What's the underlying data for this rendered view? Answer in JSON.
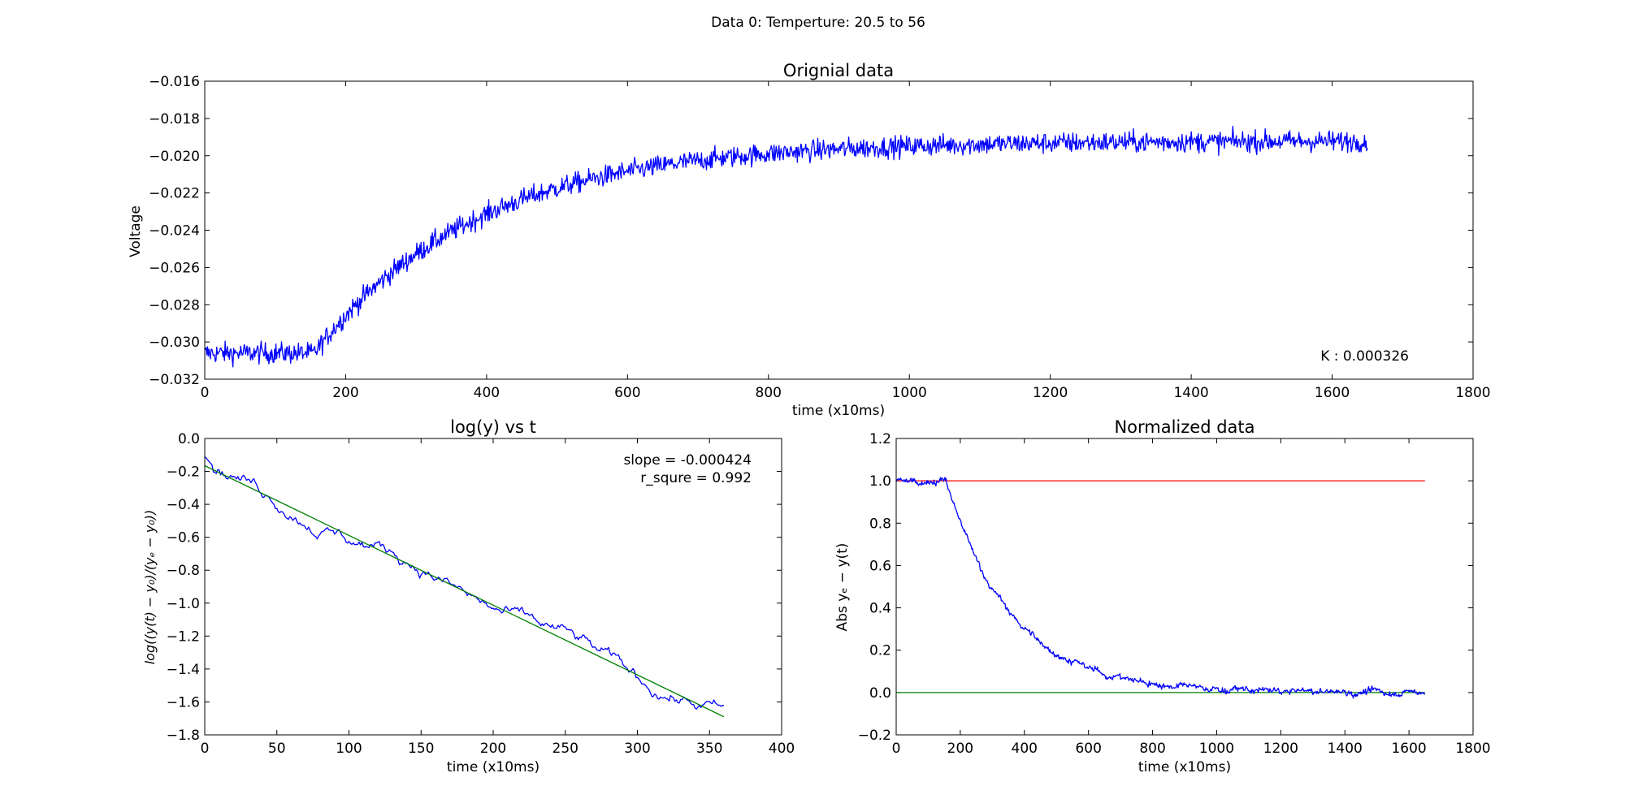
{
  "suptitle": "Data 0: Temperture: 20.5 to 56",
  "chart_data": [
    {
      "type": "line",
      "title": "Orignial data",
      "xlabel": "time (x10ms)",
      "ylabel": "Voltage",
      "xlim": [
        0,
        1800
      ],
      "ylim": [
        -0.032,
        -0.016
      ],
      "xticks": [
        "0",
        "200",
        "400",
        "600",
        "800",
        "1000",
        "1200",
        "1400",
        "1600",
        "1800"
      ],
      "yticks": [
        "−0.032",
        "−0.030",
        "−0.028",
        "−0.026",
        "−0.024",
        "−0.022",
        "−0.020",
        "−0.018",
        "−0.016"
      ],
      "annotation": "K : 0.000326",
      "grid": false,
      "series": [
        {
          "color": "#0000ff",
          "x_range": [
            0,
            1650
          ],
          "baseline": -0.0306,
          "plateau": -0.0192,
          "onset": 155,
          "k": 0.000326,
          "noise": 0.00028,
          "points": 1651
        }
      ]
    },
    {
      "type": "line",
      "title": "log(y) vs t",
      "xlabel": "time (x10ms)",
      "ylabel": "log((y(t) − y₀)/(yₑ − y₀))",
      "xlim": [
        0,
        400
      ],
      "ylim": [
        -1.8,
        0.0
      ],
      "xticks": [
        "0",
        "50",
        "100",
        "150",
        "200",
        "250",
        "300",
        "350",
        "400"
      ],
      "yticks": [
        "−1.8",
        "−1.6",
        "−1.4",
        "−1.2",
        "−1.0",
        "−0.8",
        "−0.6",
        "−0.4",
        "−0.2",
        "0.0"
      ],
      "annotations": [
        "slope = -0.000424",
        "r_squre = 0.992"
      ],
      "grid": false,
      "series": [
        {
          "color": "#0000ff",
          "kind": "data",
          "x_range": [
            0,
            360
          ]
        },
        {
          "color": "#008000",
          "kind": "fit",
          "x": [
            0,
            360
          ],
          "y": [
            -0.165,
            -1.69
          ]
        }
      ]
    },
    {
      "type": "line",
      "title": "Normalized data",
      "xlabel": "time (x10ms)",
      "ylabel": "Abs yₑ − y(t)",
      "xlim": [
        0,
        1800
      ],
      "ylim": [
        -0.2,
        1.2
      ],
      "xticks": [
        "0",
        "200",
        "400",
        "600",
        "800",
        "1000",
        "1200",
        "1400",
        "1600",
        "1800"
      ],
      "yticks": [
        "−0.2",
        "0.0",
        "0.2",
        "0.4",
        "0.6",
        "0.8",
        "1.0",
        "1.2"
      ],
      "grid": false,
      "series": [
        {
          "color": "#0000ff",
          "kind": "data",
          "x_range": [
            0,
            1650
          ]
        },
        {
          "color": "#ff0000",
          "kind": "reference",
          "x": [
            0,
            1650
          ],
          "y": [
            1.0,
            1.0
          ]
        },
        {
          "color": "#008000",
          "kind": "reference",
          "x": [
            0,
            1650
          ],
          "y": [
            0.0,
            0.0
          ]
        }
      ]
    }
  ]
}
